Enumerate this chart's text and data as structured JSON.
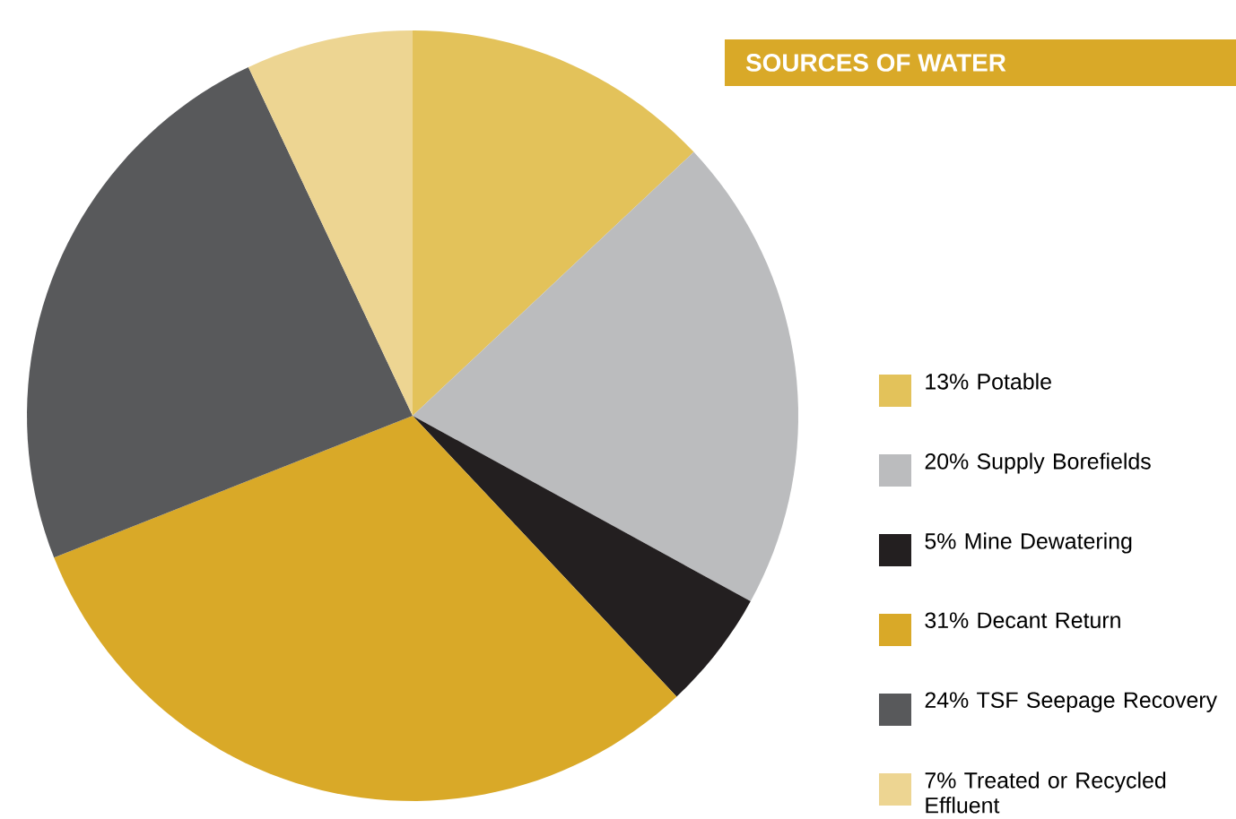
{
  "chart_data": {
    "type": "pie",
    "title": "SOURCES OF WATER",
    "categories": [
      "13% Potable",
      "20% Supply Borefields",
      "5% Mine Dewatering",
      "31% Decant Return",
      "24% TSF Seepage Recovery",
      "7% Treated or Recycled Effluent"
    ],
    "values": [
      13,
      20,
      5,
      31,
      24,
      7
    ],
    "colors": [
      "#e3c25a",
      "#bbbcbe",
      "#231f20",
      "#d9a928",
      "#58595b",
      "#edd592"
    ],
    "legend": "right"
  }
}
